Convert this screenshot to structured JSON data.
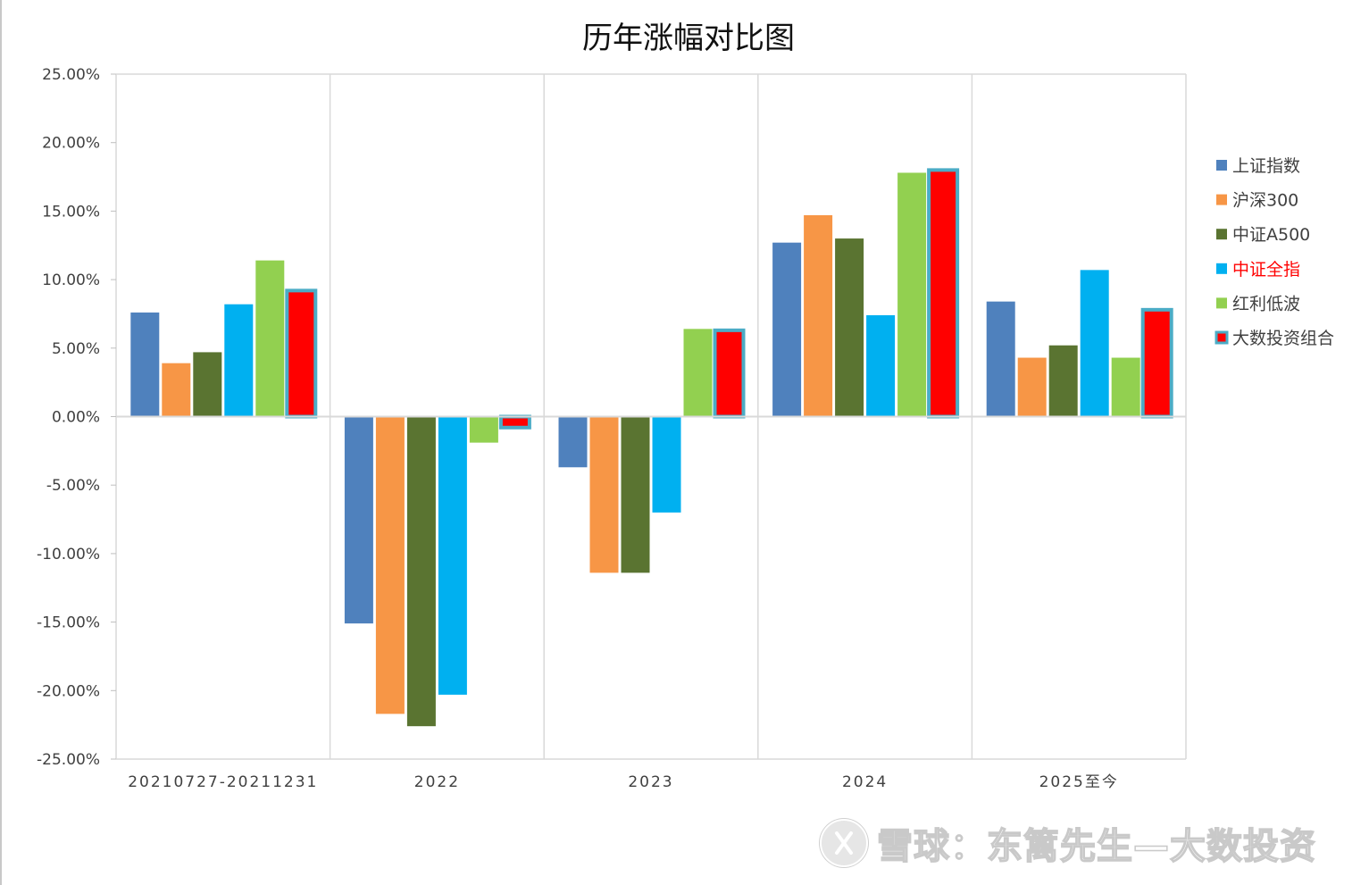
{
  "chart_data": {
    "type": "bar",
    "title": "历年涨幅对比图",
    "categories": [
      "20210727-20211231",
      "2022",
      "2023",
      "2024",
      "2025至今"
    ],
    "series": [
      {
        "name": "上证指数",
        "color": "#4f81bd",
        "values": [
          7.6,
          -15.1,
          -3.7,
          12.7,
          8.4
        ]
      },
      {
        "name": "沪深300",
        "color": "#f79646",
        "values": [
          3.9,
          -21.7,
          -11.4,
          14.7,
          4.3
        ]
      },
      {
        "name": "中证A500",
        "color": "#5a7431",
        "values": [
          4.7,
          -22.6,
          -11.4,
          13.0,
          5.2
        ]
      },
      {
        "name": "中证全指",
        "color": "#00b0f0",
        "values": [
          8.2,
          -20.3,
          -7.0,
          7.4,
          10.7
        ],
        "label_color": "#ff0000"
      },
      {
        "name": "红利低波",
        "color": "#92d050",
        "values": [
          11.4,
          -1.9,
          6.4,
          17.8,
          4.3
        ]
      },
      {
        "name": "大数投资组合",
        "color": "#ff0000",
        "border_color": "#4bacc6",
        "values": [
          9.2,
          -0.8,
          6.3,
          18.0,
          7.8
        ]
      }
    ],
    "yticks": [
      "25.00%",
      "20.00%",
      "15.00%",
      "10.00%",
      "5.00%",
      "0.00%",
      "-5.00%",
      "-10.00%",
      "-15.00%",
      "-20.00%",
      "-25.00%"
    ],
    "ylim": [
      -25,
      25
    ],
    "ylabel": "",
    "xlabel": "",
    "grid": "vertical category separators",
    "legend_position": "right"
  },
  "watermark": {
    "icon": "snowball-logo-icon",
    "text": "雪球：东篱先生—大数投资"
  }
}
